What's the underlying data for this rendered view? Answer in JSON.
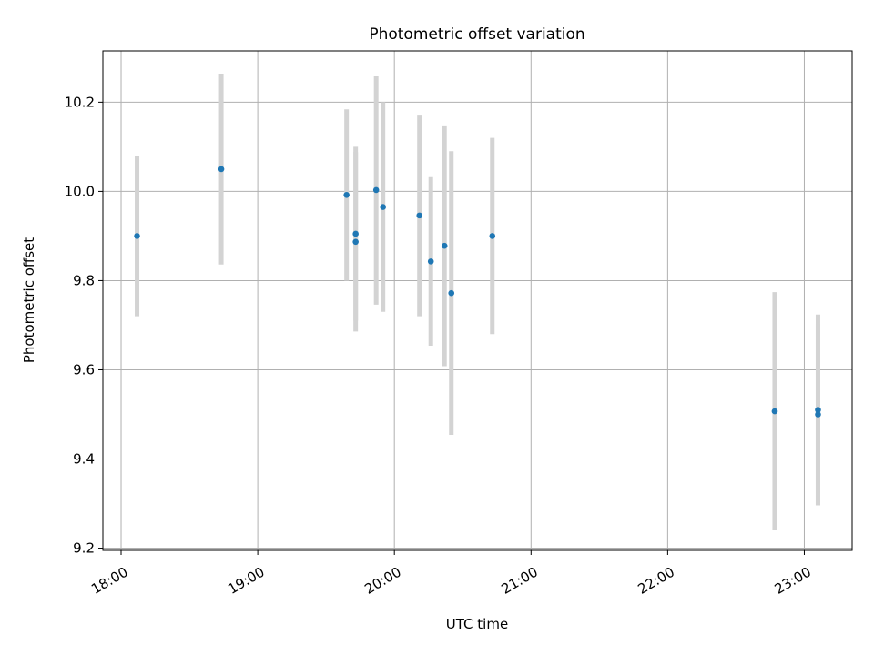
{
  "chart_data": {
    "type": "scatter",
    "title": "Photometric offset variation",
    "xlabel": "UTC time",
    "ylabel": "Photometric offset",
    "xlim": [
      "17:52",
      "23:21"
    ],
    "ylim": [
      9.195,
      10.315
    ],
    "x_ticks": [
      "18:00",
      "19:00",
      "20:00",
      "21:00",
      "22:00",
      "23:00"
    ],
    "y_ticks": [
      9.2,
      9.4,
      9.6,
      9.8,
      10.0,
      10.2
    ],
    "y_tick_labels": [
      "9.2",
      "9.4",
      "9.6",
      "9.8",
      "10.0",
      "10.2"
    ],
    "grid": true,
    "point_color": "#1f77b4",
    "errorbar_color": "#d3d3d3",
    "points": [
      {
        "time": "18:07",
        "y": 9.9,
        "ylow": 9.72,
        "yhigh": 10.08
      },
      {
        "time": "18:44",
        "y": 10.05,
        "ylow": 9.836,
        "yhigh": 10.264
      },
      {
        "time": "19:39",
        "y": 9.992,
        "ylow": 9.8,
        "yhigh": 10.184
      },
      {
        "time": "19:43",
        "y": 9.905,
        "ylow": 9.71,
        "yhigh": 10.1
      },
      {
        "time": "19:43",
        "y": 9.887,
        "ylow": 9.686,
        "yhigh": 10.088
      },
      {
        "time": "19:52",
        "y": 10.003,
        "ylow": 9.746,
        "yhigh": 10.26
      },
      {
        "time": "19:55",
        "y": 9.965,
        "ylow": 9.73,
        "yhigh": 10.2
      },
      {
        "time": "20:11",
        "y": 9.946,
        "ylow": 9.72,
        "yhigh": 10.172
      },
      {
        "time": "20:16",
        "y": 9.843,
        "ylow": 9.654,
        "yhigh": 10.032
      },
      {
        "time": "20:22",
        "y": 9.878,
        "ylow": 9.608,
        "yhigh": 10.148
      },
      {
        "time": "20:25",
        "y": 9.772,
        "ylow": 9.454,
        "yhigh": 10.09
      },
      {
        "time": "20:43",
        "y": 9.9,
        "ylow": 9.68,
        "yhigh": 10.12
      },
      {
        "time": "22:47",
        "y": 9.507,
        "ylow": 9.24,
        "yhigh": 9.774
      },
      {
        "time": "23:06",
        "y": 9.51,
        "ylow": 9.296,
        "yhigh": 9.724
      },
      {
        "time": "23:06",
        "y": 9.5,
        "ylow": 9.296,
        "yhigh": 9.704
      }
    ]
  }
}
